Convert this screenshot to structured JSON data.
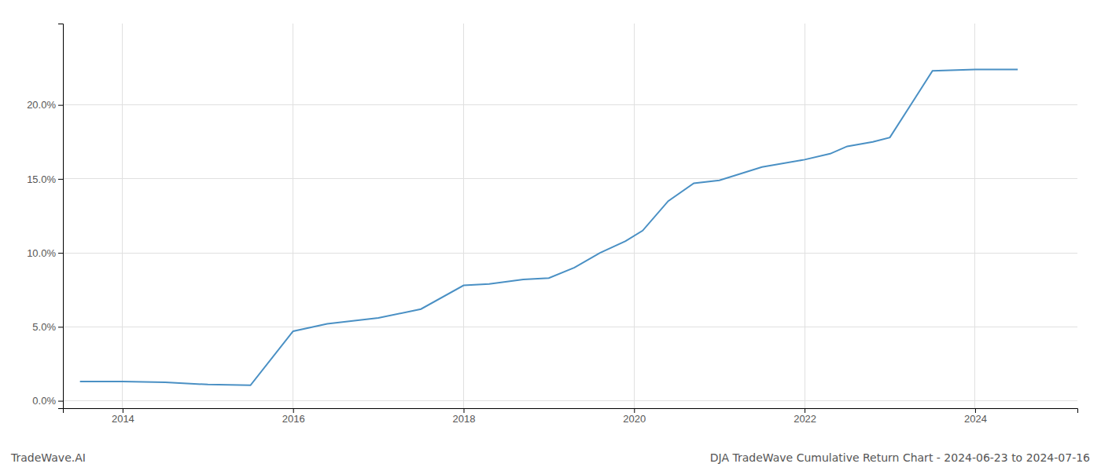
{
  "chart_data": {
    "type": "line",
    "title": "DJA TradeWave Cumulative Return Chart - 2024-06-23 to 2024-07-16",
    "annotations": [
      "TradeWave.AI"
    ],
    "x": [
      2013.5,
      2014.0,
      2014.5,
      2015.0,
      2015.5,
      2016.0,
      2016.4,
      2017.0,
      2017.5,
      2018.0,
      2018.3,
      2018.7,
      2019.0,
      2019.3,
      2019.6,
      2019.9,
      2020.1,
      2020.4,
      2020.7,
      2021.0,
      2021.5,
      2022.0,
      2022.3,
      2022.5,
      2022.8,
      2023.0,
      2023.3,
      2023.5,
      2024.0,
      2024.5
    ],
    "values": [
      1.3,
      1.3,
      1.25,
      1.1,
      1.05,
      4.7,
      5.2,
      5.6,
      6.2,
      7.8,
      7.9,
      8.2,
      8.3,
      9.0,
      10.0,
      10.8,
      11.5,
      13.5,
      14.7,
      14.9,
      15.8,
      16.3,
      16.7,
      17.2,
      17.5,
      17.8,
      20.5,
      22.3,
      22.4,
      22.4
    ],
    "color": "#4a90c4",
    "xlim": [
      2013.3,
      2025.2
    ],
    "xticks": [
      2014,
      2016,
      2018,
      2020,
      2022,
      2024
    ],
    "ylim": [
      -0.5,
      25.5
    ],
    "yticks": [
      {
        "value": 0.0,
        "label": "0.0%"
      },
      {
        "value": 5.0,
        "label": "5.0%"
      },
      {
        "value": 10.0,
        "label": "10.0%"
      },
      {
        "value": 15.0,
        "label": "15.0%"
      },
      {
        "value": 20.0,
        "label": "20.0%"
      }
    ],
    "grid": true
  }
}
